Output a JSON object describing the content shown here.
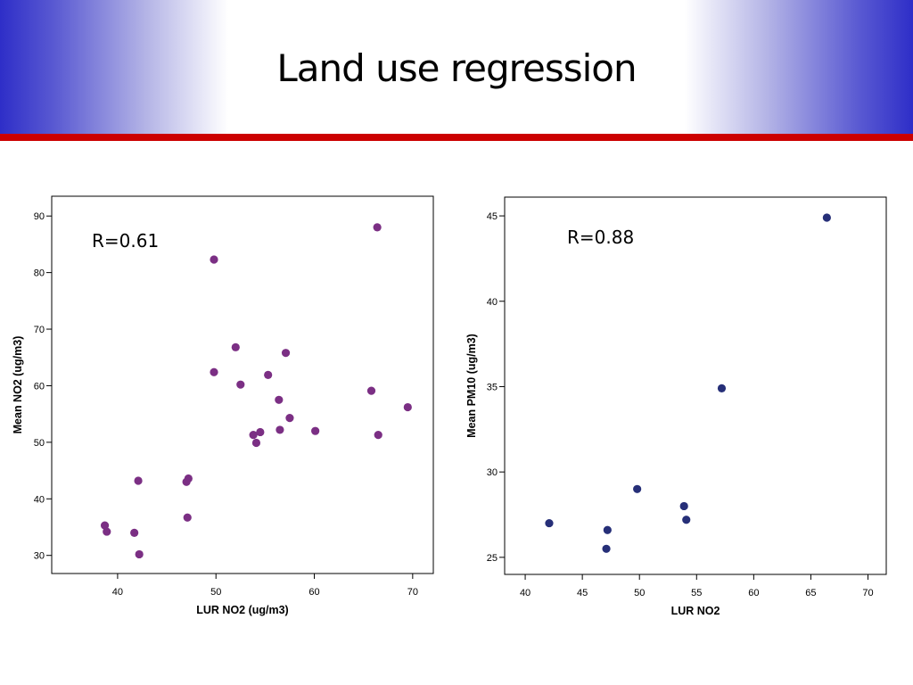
{
  "slide": {
    "title": "Land use regression",
    "colors": {
      "header_blue": "#2e2ec8",
      "accent_red": "#cc0000"
    }
  },
  "chart_data": [
    {
      "type": "scatter",
      "annotation": "R=0.61",
      "xlabel": "LUR NO2 (ug/m3)",
      "ylabel": "Mean NO2 (ug/m3)",
      "xlim": [
        33.3,
        72.1
      ],
      "ylim": [
        26.8,
        93.5
      ],
      "xticks": [
        40,
        50,
        60,
        70
      ],
      "yticks": [
        30,
        40,
        50,
        60,
        70,
        80,
        90
      ],
      "grid": false,
      "color": "#7b2f84",
      "x": [
        66.4,
        49.8,
        52.0,
        57.1,
        49.8,
        55.3,
        52.5,
        65.8,
        56.4,
        69.5,
        57.5,
        56.5,
        60.1,
        66.5,
        54.5,
        53.8,
        54.1,
        47.2,
        47.0,
        42.1,
        47.1,
        38.7,
        38.9,
        41.7,
        42.2
      ],
      "y": [
        88.0,
        82.3,
        66.8,
        65.8,
        62.4,
        61.9,
        60.2,
        59.1,
        57.5,
        56.2,
        54.3,
        52.2,
        52.0,
        51.3,
        51.8,
        51.3,
        49.9,
        43.6,
        43.0,
        43.2,
        36.7,
        35.3,
        34.2,
        34.0,
        30.2
      ]
    },
    {
      "type": "scatter",
      "annotation": "R=0.88",
      "xlabel": "LUR NO2",
      "ylabel": "Mean PM10 (ug/m3)",
      "xlim": [
        38.2,
        71.6
      ],
      "ylim": [
        24.0,
        46.1
      ],
      "xticks": [
        40,
        45,
        50,
        55,
        60,
        65,
        70
      ],
      "yticks": [
        25,
        30,
        35,
        40,
        45
      ],
      "grid": false,
      "color": "#262f78",
      "x": [
        66.4,
        57.2,
        49.8,
        53.9,
        54.1,
        42.1,
        47.2,
        47.1
      ],
      "y": [
        44.9,
        34.9,
        29.0,
        28.0,
        27.2,
        27.0,
        26.6,
        25.5
      ]
    }
  ]
}
